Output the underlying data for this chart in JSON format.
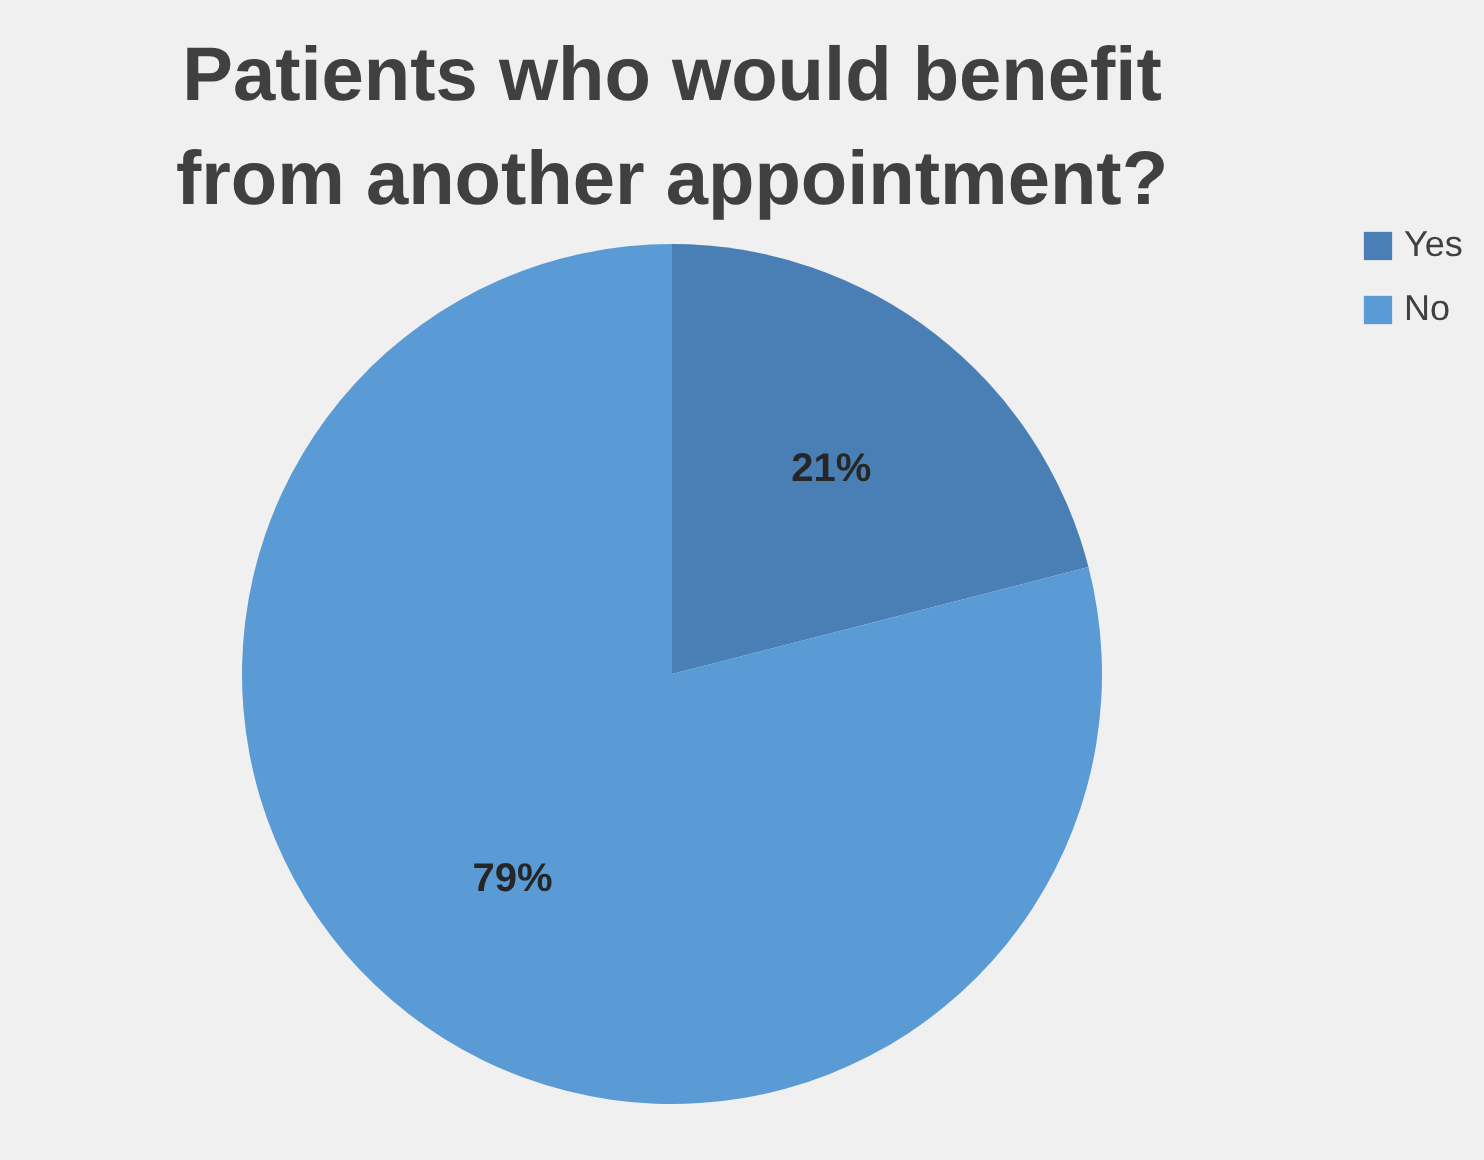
{
  "chart_data": {
    "type": "pie",
    "title": "Patients who would benefit from another appointment?",
    "categories": [
      "Yes",
      "No"
    ],
    "values": [
      21,
      79
    ],
    "colors": [
      "#4a7fb5",
      "#5b9bd5"
    ],
    "value_labels": [
      "21%",
      "79%"
    ],
    "legend": "right"
  }
}
